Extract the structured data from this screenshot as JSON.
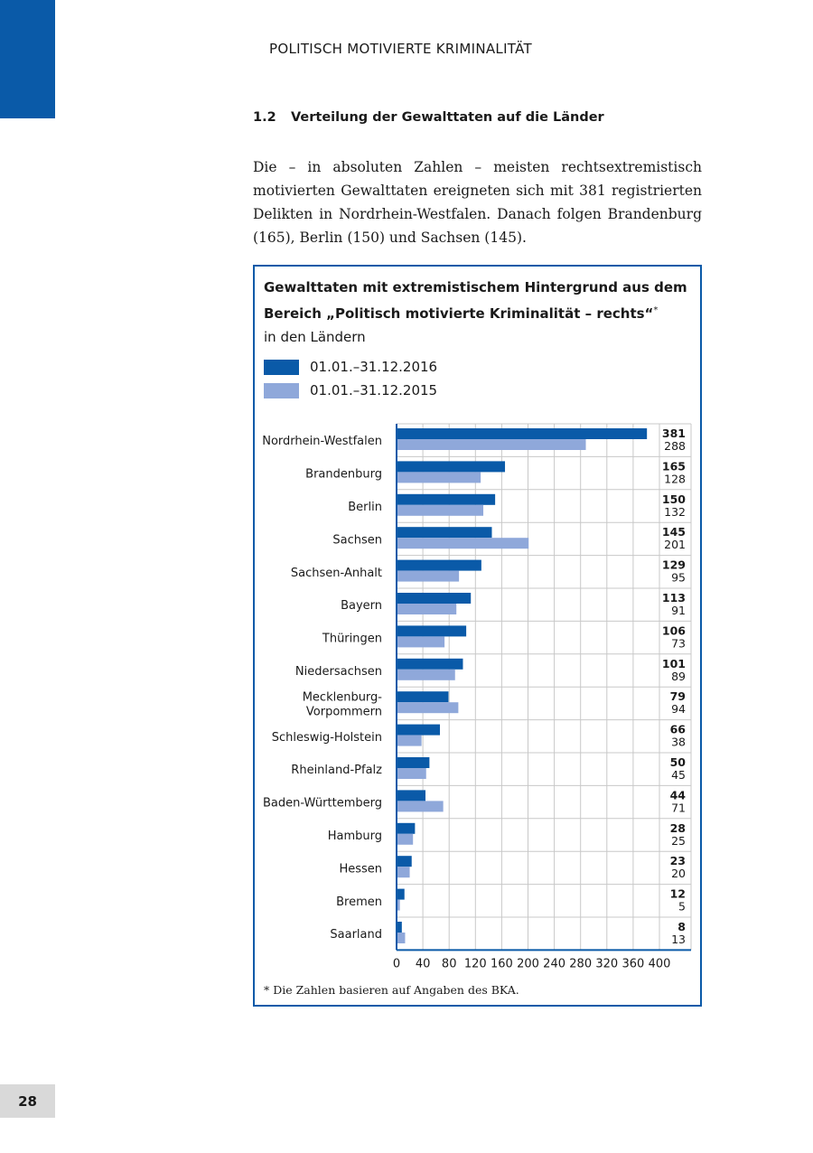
{
  "header": {
    "running_title": "POLITISCH MOTIVIERTE KRIMINALITÄT",
    "page_number": "28"
  },
  "section": {
    "number": "1.2",
    "title": "Verteilung der Gewalttaten auf die Länder"
  },
  "paragraph": "Die – in absoluten Zahlen – meisten rechtsextremistisch motivierten Gewalttaten ereigneten sich mit 381 registrierten Delikten in Nordrhein-Westfalen. Danach folgen Brandenburg (165), Berlin (150) und Sachsen (145).",
  "chart_data": {
    "type": "bar",
    "orientation": "horizontal",
    "title_line1": "Gewalttaten mit extremistischem Hintergrund aus dem",
    "title_line2": "Bereich „Politisch motivierte Kriminalität – rechts“",
    "title_mark": "*",
    "subtitle": "in den Ländern",
    "footnote": "* Die Zahlen basieren auf Angaben des BKA.",
    "legend_placement": "top-left",
    "grid": true,
    "xlim": [
      0,
      400
    ],
    "xticks": [
      "0",
      "40",
      "80",
      "120",
      "160",
      "200",
      "240",
      "280",
      "320",
      "360",
      "400"
    ],
    "categories": [
      "Nordrhein-Westfalen",
      "Brandenburg",
      "Berlin",
      "Sachsen",
      "Sachsen-Anhalt",
      "Bayern",
      "Thüringen",
      "Niedersachsen",
      "Mecklenburg-\nVorpommern",
      "Schleswig-Holstein",
      "Rheinland-Pfalz",
      "Baden-Württemberg",
      "Hamburg",
      "Hessen",
      "Bremen",
      "Saarland"
    ],
    "series": [
      {
        "name": "01.01.–31.12.2016",
        "color": "#0a5aa8",
        "values": [
          381,
          165,
          150,
          145,
          129,
          113,
          106,
          101,
          79,
          66,
          50,
          44,
          28,
          23,
          12,
          8
        ]
      },
      {
        "name": "01.01.–31.12.2015",
        "color": "#8fa8da",
        "values": [
          288,
          128,
          132,
          201,
          95,
          91,
          73,
          89,
          94,
          38,
          45,
          71,
          25,
          20,
          5,
          13
        ]
      }
    ]
  }
}
